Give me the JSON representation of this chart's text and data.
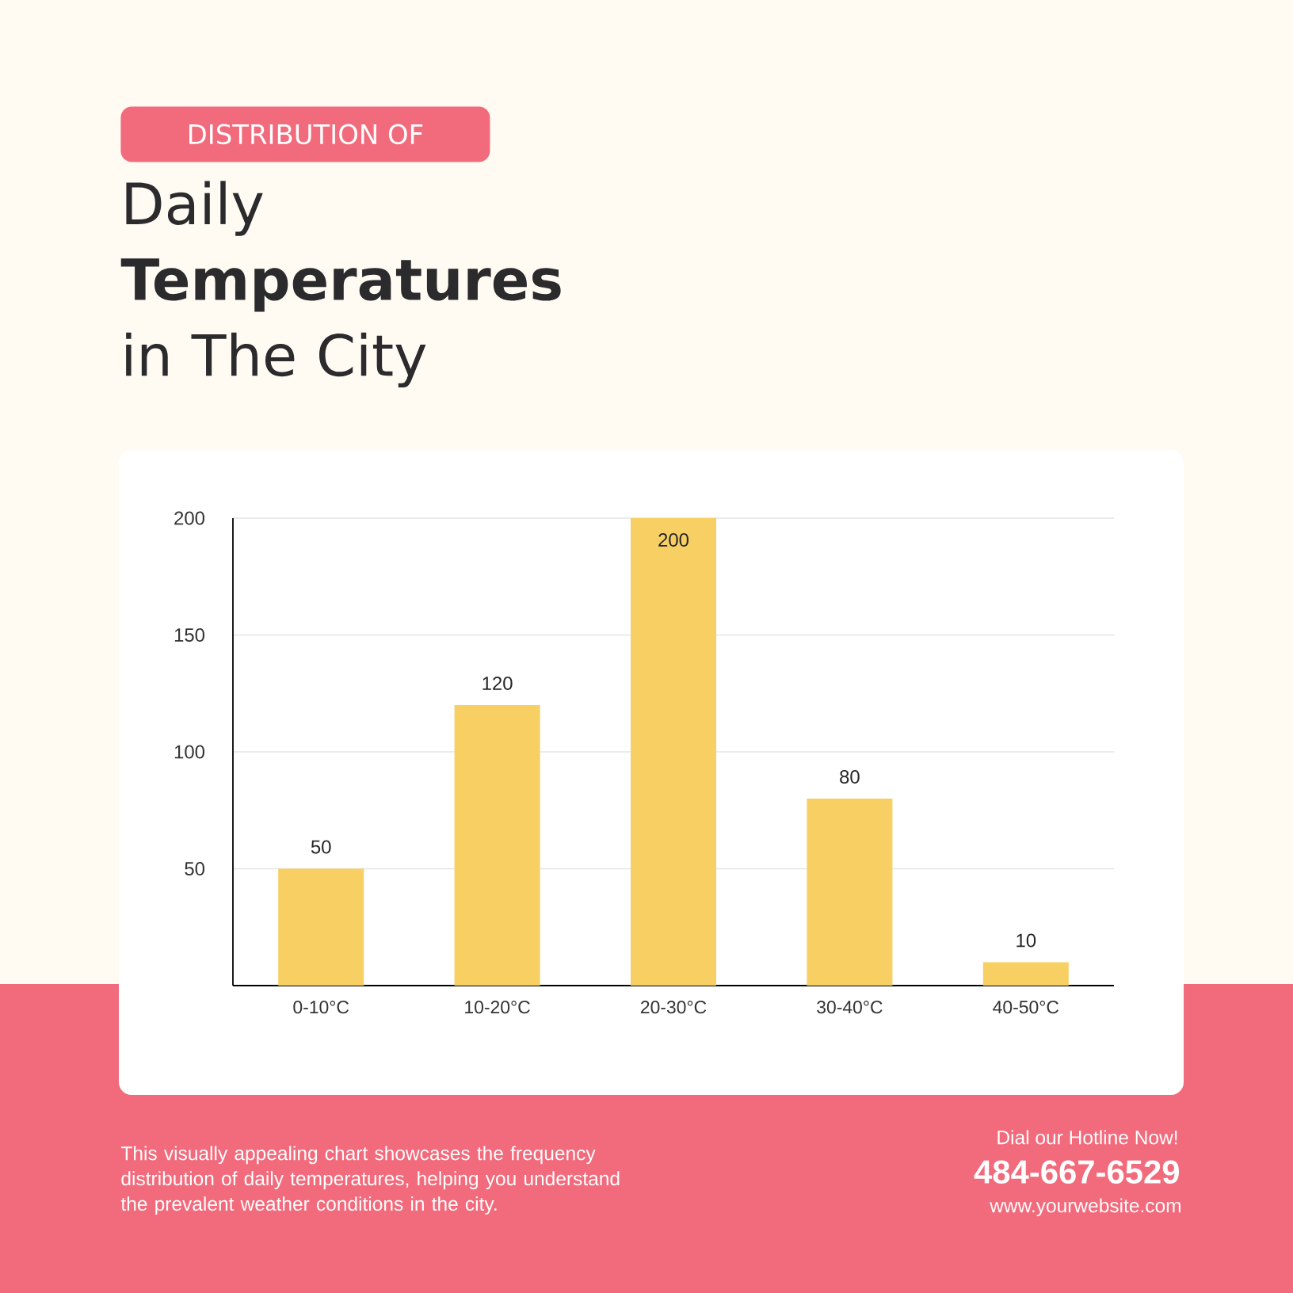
{
  "chart_data": {
    "type": "bar",
    "subtitle": "DISTRIBUTION OF",
    "title": "Daily **Temperatures** in The City",
    "categories": [
      "0-10°C",
      "10-20°C",
      "20-30°C",
      "30-40°C",
      "40-50°C"
    ],
    "values": [
      50,
      120,
      200,
      80,
      10
    ],
    "color": "#f7cf63",
    "ylim": [
      0,
      200
    ],
    "yticks": [
      50,
      100,
      150,
      200
    ],
    "grid": "y",
    "data_labels": true,
    "annotations": [
      "This visually appealing chart showcases the frequency distribution of daily temperatures, helping you understand the prevalent weather conditions in the city.",
      "Dial our Hotline Now!",
      "484-667-6529",
      "www.yourwebsite.com"
    ]
  }
}
